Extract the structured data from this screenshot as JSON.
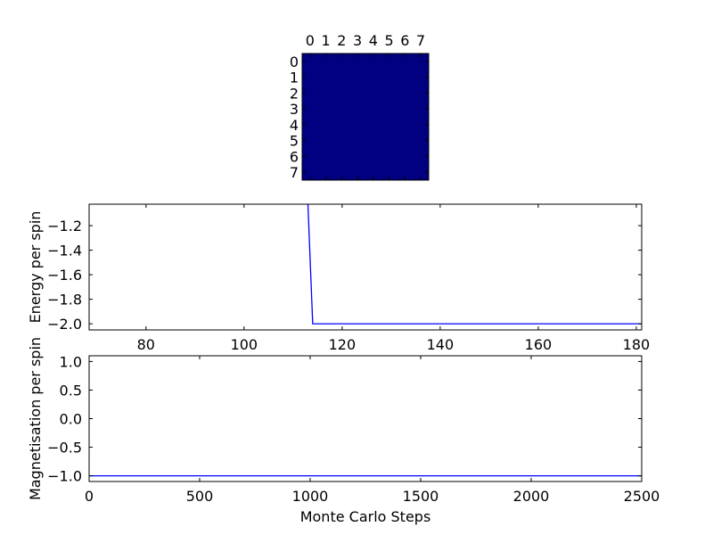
{
  "chart_data": [
    {
      "type": "heatmap",
      "rows": 8,
      "cols": 8,
      "x_ticks": [
        "0",
        "1",
        "2",
        "3",
        "4",
        "5",
        "6",
        "7"
      ],
      "y_ticks": [
        "0",
        "1",
        "2",
        "3",
        "4",
        "5",
        "6",
        "7"
      ],
      "values": [
        [
          1,
          1,
          1,
          1,
          1,
          1,
          1,
          1
        ],
        [
          1,
          1,
          1,
          1,
          1,
          1,
          1,
          1
        ],
        [
          1,
          1,
          1,
          1,
          1,
          1,
          1,
          1
        ],
        [
          1,
          1,
          1,
          1,
          1,
          1,
          1,
          1
        ],
        [
          1,
          1,
          1,
          1,
          1,
          1,
          1,
          1
        ],
        [
          1,
          1,
          1,
          1,
          1,
          1,
          1,
          1
        ],
        [
          1,
          1,
          1,
          1,
          1,
          1,
          1,
          1
        ],
        [
          1,
          1,
          1,
          1,
          1,
          1,
          1,
          1
        ]
      ],
      "color": "#000080"
    },
    {
      "type": "line",
      "xlabel": "",
      "ylabel": "Energy per spin",
      "xlim": [
        68.4,
        181.1
      ],
      "ylim": [
        -2.05,
        -1.025
      ],
      "x_ticks": [
        80,
        100,
        120,
        140,
        160,
        180
      ],
      "y_ticks": [
        -1.2,
        -1.4,
        -1.6,
        -1.8,
        -2.0
      ],
      "x_tick_labels": [
        "80",
        "100",
        "120",
        "140",
        "160",
        "180"
      ],
      "y_tick_labels": [
        "−1.2",
        "−1.4",
        "−1.6",
        "−1.8",
        "−2.0"
      ],
      "x": [
        112,
        113,
        114,
        181
      ],
      "y": [
        -1.0,
        -1.0,
        -2.0,
        -2.0
      ],
      "color": "#0000ff"
    },
    {
      "type": "line",
      "xlabel": "Monte Carlo Steps",
      "ylabel": "Magnetisation per spin",
      "xlim": [
        0,
        2500
      ],
      "ylim": [
        -1.1,
        1.1
      ],
      "x_ticks": [
        0,
        500,
        1000,
        1500,
        2000,
        2500
      ],
      "y_ticks": [
        1.0,
        0.5,
        0.0,
        -0.5,
        -1.0
      ],
      "x_tick_labels": [
        "0",
        "500",
        "1000",
        "1500",
        "2000",
        "2500"
      ],
      "y_tick_labels": [
        "1.0",
        "0.5",
        "0.0",
        "−0.5",
        "−1.0"
      ],
      "x": [
        0,
        2500
      ],
      "y": [
        -1.0,
        -1.0
      ],
      "color": "#0000ff"
    }
  ]
}
